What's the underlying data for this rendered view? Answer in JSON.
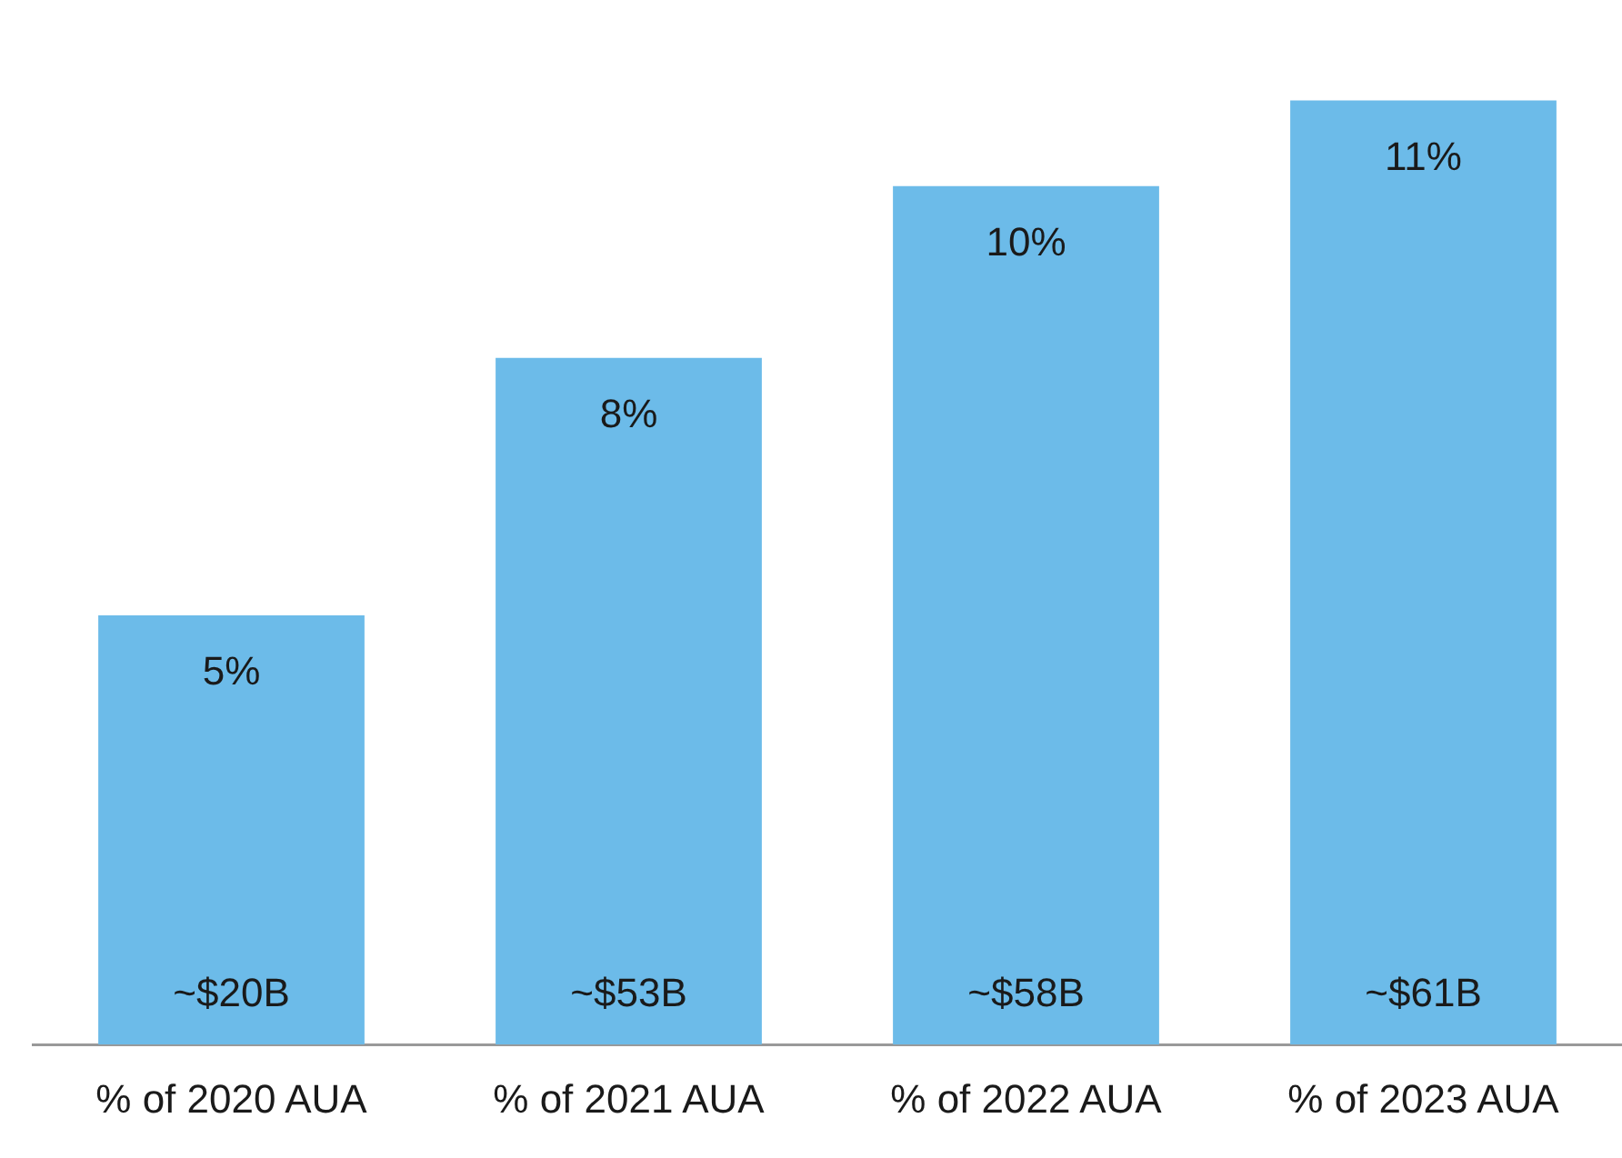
{
  "chart_data": {
    "type": "bar",
    "categories": [
      "% of 2020 AUA",
      "% of 2021 AUA",
      "% of 2022 AUA",
      "% of 2023 AUA"
    ],
    "values": [
      5,
      8,
      10,
      11
    ],
    "color": "#6cbbe9",
    "value_labels": [
      "5%",
      "8%",
      "10%",
      "11%"
    ],
    "tick_labels": "x",
    "grid": false,
    "legend": false,
    "annotations": [
      {
        "text": "~$20B",
        "x": "% of 2020 AUA",
        "y": 0
      },
      {
        "text": "~$53B",
        "x": "% of 2021 AUA",
        "y": 0
      },
      {
        "text": "~$58B",
        "x": "% of 2022 AUA",
        "y": 0
      },
      {
        "text": "~$61B",
        "x": "% of 2023 AUA",
        "y": 0
      }
    ]
  }
}
